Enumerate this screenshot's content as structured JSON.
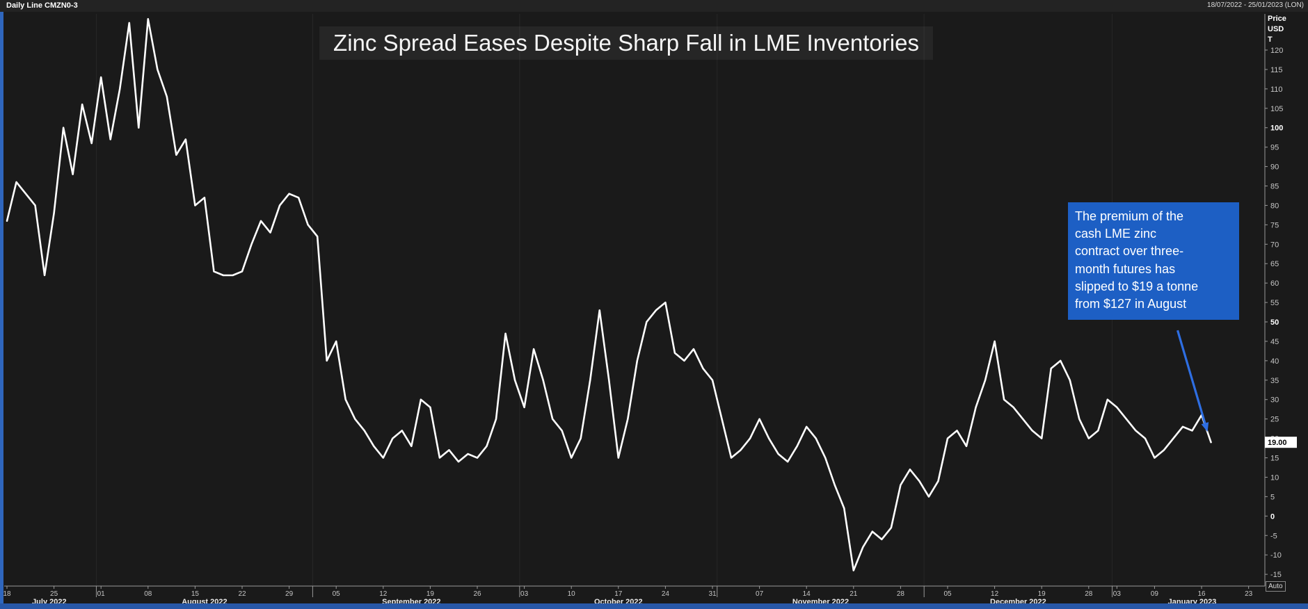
{
  "window": {
    "instrument_label": "Daily Line CMZN0-3",
    "date_range_label": "18/07/2022 - 25/01/2023 (LON)"
  },
  "title": "Zinc Spread Eases Despite Sharp Fall in LME Inventories",
  "annotation": {
    "text": "The premium of the\ncash LME zinc\ncontract over three-\nmonth futures has\nslipped to $19 a tonne\nfrom $127 in August"
  },
  "y_axis": {
    "header_lines": "Price\nUSD\nT",
    "last_price": "19.00",
    "auto_label": "Auto"
  },
  "colors": {
    "background": "#1a1a1a",
    "line": "#ffffff",
    "annotation_blue": "#1d5fc4",
    "arrow_blue": "#2e6ee2",
    "edge_blue": "#2f66bd",
    "bottom_bar_blue": "#2757a7",
    "axis_gray": "#9a9a9a"
  },
  "chart_data": {
    "type": "line",
    "title": "Zinc Spread Eases Despite Sharp Fall in LME Inventories",
    "series_name": "CMZN0-3",
    "ylabel": "Price USD T",
    "ylim": [
      -17,
      129
    ],
    "grid": "off",
    "legend": "none",
    "last_value": 19.0,
    "y_ticks": [
      120,
      115,
      110,
      105,
      100,
      95,
      90,
      85,
      80,
      75,
      70,
      65,
      60,
      55,
      50,
      45,
      40,
      35,
      30,
      25,
      20,
      15,
      10,
      5,
      0,
      -5,
      -10,
      -15
    ],
    "bold_y_ticks": [
      100,
      50,
      0
    ],
    "x_ticks": [
      {
        "label": "18",
        "i": 0
      },
      {
        "label": "25",
        "i": 5
      },
      {
        "label": "01",
        "i": 10
      },
      {
        "label": "08",
        "i": 15
      },
      {
        "label": "15",
        "i": 20
      },
      {
        "label": "22",
        "i": 25
      },
      {
        "label": "29",
        "i": 30
      },
      {
        "label": "05",
        "i": 35
      },
      {
        "label": "12",
        "i": 40
      },
      {
        "label": "19",
        "i": 45
      },
      {
        "label": "26",
        "i": 50
      },
      {
        "label": "03",
        "i": 55
      },
      {
        "label": "10",
        "i": 60
      },
      {
        "label": "17",
        "i": 65
      },
      {
        "label": "24",
        "i": 70
      },
      {
        "label": "31",
        "i": 75
      },
      {
        "label": "07",
        "i": 80
      },
      {
        "label": "14",
        "i": 85
      },
      {
        "label": "21",
        "i": 90
      },
      {
        "label": "28",
        "i": 95
      },
      {
        "label": "05",
        "i": 100
      },
      {
        "label": "12",
        "i": 105
      },
      {
        "label": "19",
        "i": 110
      },
      {
        "label": "28",
        "i": 115
      },
      {
        "label": "03",
        "i": 118
      },
      {
        "label": "09",
        "i": 122
      },
      {
        "label": "16",
        "i": 127
      },
      {
        "label": "23",
        "i": 132
      }
    ],
    "month_labels": [
      {
        "label": "July 2022",
        "i": 4.5
      },
      {
        "label": "August 2022",
        "i": 21
      },
      {
        "label": "September 2022",
        "i": 43
      },
      {
        "label": "October 2022",
        "i": 65
      },
      {
        "label": "November 2022",
        "i": 86.5
      },
      {
        "label": "December 2022",
        "i": 107.5
      },
      {
        "label": "January 2023",
        "i": 126
      }
    ],
    "month_boundaries": [
      9.5,
      32.5,
      54.5,
      75.5,
      97.5,
      117.5
    ],
    "dates": [
      "2022-07-18",
      "2022-07-19",
      "2022-07-20",
      "2022-07-21",
      "2022-07-22",
      "2022-07-25",
      "2022-07-26",
      "2022-07-27",
      "2022-07-28",
      "2022-07-29",
      "2022-08-01",
      "2022-08-02",
      "2022-08-03",
      "2022-08-04",
      "2022-08-05",
      "2022-08-08",
      "2022-08-09",
      "2022-08-10",
      "2022-08-11",
      "2022-08-12",
      "2022-08-15",
      "2022-08-16",
      "2022-08-17",
      "2022-08-18",
      "2022-08-19",
      "2022-08-22",
      "2022-08-23",
      "2022-08-24",
      "2022-08-25",
      "2022-08-26",
      "2022-08-29",
      "2022-08-30",
      "2022-08-31",
      "2022-09-01",
      "2022-09-02",
      "2022-09-05",
      "2022-09-06",
      "2022-09-07",
      "2022-09-08",
      "2022-09-09",
      "2022-09-12",
      "2022-09-13",
      "2022-09-14",
      "2022-09-15",
      "2022-09-16",
      "2022-09-19",
      "2022-09-20",
      "2022-09-21",
      "2022-09-22",
      "2022-09-23",
      "2022-09-26",
      "2022-09-27",
      "2022-09-28",
      "2022-09-29",
      "2022-09-30",
      "2022-10-03",
      "2022-10-04",
      "2022-10-05",
      "2022-10-06",
      "2022-10-07",
      "2022-10-10",
      "2022-10-11",
      "2022-10-12",
      "2022-10-13",
      "2022-10-14",
      "2022-10-17",
      "2022-10-18",
      "2022-10-19",
      "2022-10-20",
      "2022-10-21",
      "2022-10-24",
      "2022-10-25",
      "2022-10-26",
      "2022-10-27",
      "2022-10-28",
      "2022-10-31",
      "2022-11-01",
      "2022-11-02",
      "2022-11-03",
      "2022-11-04",
      "2022-11-07",
      "2022-11-08",
      "2022-11-09",
      "2022-11-10",
      "2022-11-11",
      "2022-11-14",
      "2022-11-15",
      "2022-11-16",
      "2022-11-17",
      "2022-11-18",
      "2022-11-21",
      "2022-11-22",
      "2022-11-23",
      "2022-11-24",
      "2022-11-25",
      "2022-11-28",
      "2022-11-29",
      "2022-11-30",
      "2022-12-01",
      "2022-12-02",
      "2022-12-05",
      "2022-12-06",
      "2022-12-07",
      "2022-12-08",
      "2022-12-09",
      "2022-12-12",
      "2022-12-13",
      "2022-12-14",
      "2022-12-15",
      "2022-12-16",
      "2022-12-19",
      "2022-12-20",
      "2022-12-21",
      "2022-12-22",
      "2022-12-23",
      "2022-12-28",
      "2022-12-29",
      "2022-12-30",
      "2023-01-03",
      "2023-01-04",
      "2023-01-05",
      "2023-01-06",
      "2023-01-09",
      "2023-01-10",
      "2023-01-11",
      "2023-01-12",
      "2023-01-13",
      "2023-01-16",
      "2023-01-17"
    ],
    "values": [
      76,
      86,
      83,
      80,
      62,
      78,
      100,
      88,
      106,
      96,
      113,
      97,
      110,
      127,
      100,
      128,
      115,
      108,
      93,
      97,
      80,
      82,
      63,
      62,
      62,
      63,
      70,
      76,
      73,
      80,
      83,
      82,
      75,
      72,
      40,
      45,
      30,
      25,
      22,
      18,
      15,
      20,
      22,
      18,
      30,
      28,
      15,
      17,
      14,
      16,
      15,
      18,
      25,
      47,
      35,
      28,
      43,
      35,
      25,
      22,
      15,
      20,
      35,
      53,
      35,
      15,
      25,
      40,
      50,
      53,
      55,
      42,
      40,
      43,
      38,
      35,
      25,
      15,
      17,
      20,
      25,
      20,
      16,
      14,
      18,
      23,
      20,
      15,
      8,
      2,
      -14,
      -8,
      -4,
      -6,
      -3,
      8,
      12,
      9,
      5,
      9,
      20,
      22,
      18,
      28,
      35,
      45,
      30,
      28,
      25,
      22,
      20,
      38,
      40,
      35,
      25,
      20,
      22,
      30,
      28,
      25,
      22,
      20,
      15,
      17,
      20,
      23,
      22,
      26,
      19
    ]
  }
}
